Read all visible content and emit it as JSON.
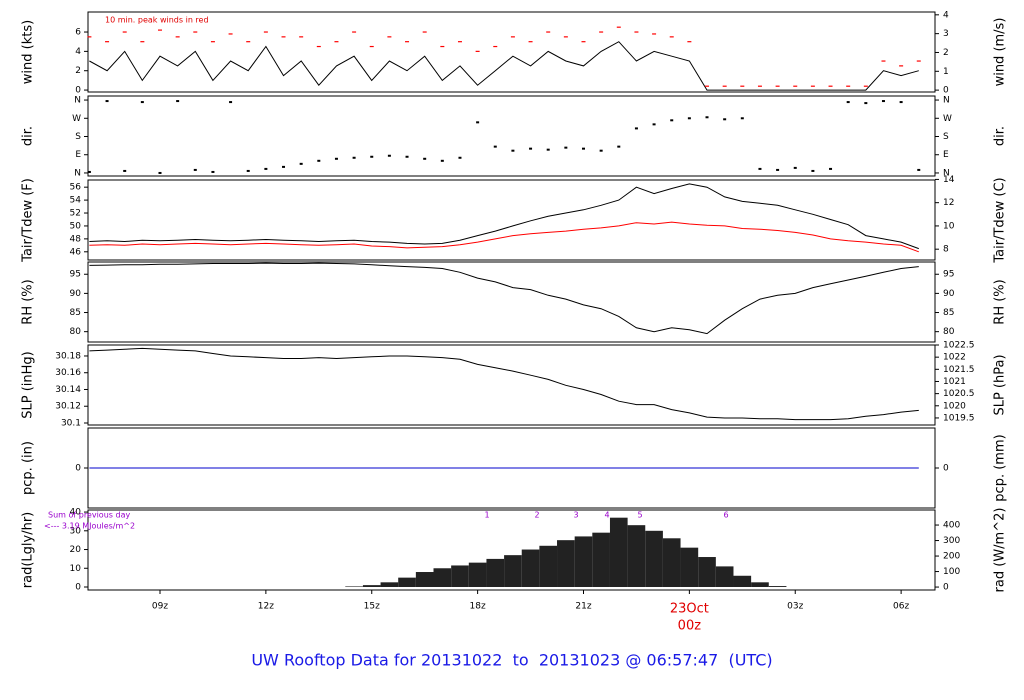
{
  "chart_data": [
    {
      "type": "line",
      "ylabel": "wind (kts)",
      "y2label": "wind (m/s)",
      "note": "10 min. peak winds in red",
      "ylim": [
        -0.2,
        8.07
      ],
      "yticks": [
        0,
        2,
        4,
        6
      ],
      "y2lim": [
        -0.1,
        4.15
      ],
      "y2ticks": [
        0,
        1,
        2,
        3,
        4
      ],
      "series": [
        {
          "style": "line",
          "color": "#000000",
          "values": [
            3,
            2,
            4,
            1,
            3.5,
            2.5,
            4,
            1,
            3,
            2,
            4.5,
            1.5,
            3,
            0.5,
            2.5,
            3.5,
            1,
            3,
            2,
            3.5,
            1,
            2.5,
            0.5,
            2,
            3.5,
            2.5,
            4,
            3,
            2.5,
            4,
            5,
            3,
            4,
            3.5,
            3,
            0,
            0,
            0,
            0,
            0,
            0,
            0,
            0,
            0,
            0,
            2,
            1.5,
            2
          ]
        },
        {
          "style": "dash",
          "color": "#ff0000",
          "values": [
            5.5,
            5,
            6,
            5,
            6.2,
            5.5,
            6,
            5,
            5.8,
            5,
            6,
            5.5,
            5.5,
            4.5,
            5,
            6,
            4.5,
            5.5,
            5,
            6,
            4.5,
            5,
            4,
            4.5,
            5.5,
            5,
            6,
            5.5,
            5,
            6,
            6.5,
            6,
            5.8,
            5.5,
            5,
            0.4,
            0.4,
            0.4,
            0.4,
            0.4,
            0.4,
            0.4,
            0.4,
            0.4,
            0.4,
            3,
            2.5,
            3
          ]
        }
      ]
    },
    {
      "type": "scatter",
      "ylabel": "dir.",
      "y2label": "dir.",
      "ylim": [
        -15,
        380
      ],
      "yticks": [
        {
          "value": 0,
          "label": "N"
        },
        {
          "value": 90,
          "label": "E"
        },
        {
          "value": 180,
          "label": "S"
        },
        {
          "value": 270,
          "label": "W"
        },
        {
          "value": 360,
          "label": "N"
        }
      ],
      "y2lim": [
        -15,
        380
      ],
      "y2ticks": [
        {
          "value": 0,
          "label": "N"
        },
        {
          "value": 90,
          "label": "E"
        },
        {
          "value": 180,
          "label": "S"
        },
        {
          "value": 270,
          "label": "W"
        },
        {
          "value": 360,
          "label": "N"
        }
      ],
      "series": [
        {
          "style": "dot",
          "color": "#000000",
          "values": [
            5,
            355,
            10,
            350,
            0,
            355,
            15,
            5,
            350,
            10,
            20,
            30,
            45,
            60,
            70,
            75,
            80,
            85,
            80,
            70,
            60,
            75,
            250,
            130,
            110,
            120,
            115,
            125,
            120,
            110,
            130,
            220,
            240,
            260,
            270,
            275,
            265,
            270,
            20,
            15,
            25,
            10,
            20,
            350,
            345,
            355,
            350,
            15
          ]
        }
      ]
    },
    {
      "type": "line",
      "ylabel": "Tair/Tdew (F)",
      "y2label": "Tair/Tdew (C)",
      "ylim": [
        44.73,
        57.11
      ],
      "yticks": [
        46,
        48,
        50,
        52,
        54,
        56
      ],
      "y2lim": [
        7.07,
        13.95
      ],
      "y2ticks": [
        8,
        10,
        12,
        14
      ],
      "series": [
        {
          "style": "line",
          "color": "#000000",
          "values": [
            47.6,
            47.7,
            47.6,
            47.8,
            47.7,
            47.8,
            47.9,
            47.8,
            47.7,
            47.8,
            47.9,
            47.8,
            47.7,
            47.6,
            47.7,
            47.8,
            47.6,
            47.5,
            47.3,
            47.2,
            47.3,
            47.8,
            48.5,
            49.2,
            50,
            50.8,
            51.5,
            52,
            52.5,
            53.2,
            54,
            56,
            55,
            55.8,
            56.5,
            56,
            54.5,
            53.8,
            53.5,
            53.2,
            52.5,
            51.8,
            51,
            50.2,
            48.5,
            48,
            47.5,
            46.5
          ]
        },
        {
          "style": "line",
          "color": "#ff0000",
          "values": [
            47,
            47.1,
            47,
            47.2,
            47.1,
            47.2,
            47.3,
            47.2,
            47.1,
            47.2,
            47.3,
            47.2,
            47.1,
            47,
            47.1,
            47.2,
            46.9,
            46.8,
            46.6,
            46.7,
            46.8,
            47.1,
            47.5,
            48,
            48.5,
            48.8,
            49,
            49.2,
            49.5,
            49.7,
            50,
            50.5,
            50.3,
            50.6,
            50.3,
            50.1,
            50,
            49.6,
            49.5,
            49.3,
            49,
            48.6,
            48,
            47.7,
            47.5,
            47.2,
            47,
            46
          ]
        }
      ]
    },
    {
      "type": "line",
      "ylabel": "RH (%)",
      "y2label": "RH (%)",
      "ylim": [
        77.3,
        98.2
      ],
      "yticks": [
        80,
        85,
        90,
        95
      ],
      "y2lim": [
        77.3,
        98.2
      ],
      "y2ticks": [
        80,
        85,
        90,
        95
      ],
      "series": [
        {
          "style": "line",
          "color": "#000000",
          "values": [
            97.3,
            97.4,
            97.5,
            97.5,
            97.6,
            97.6,
            97.7,
            97.8,
            97.8,
            97.8,
            97.9,
            97.8,
            97.8,
            97.9,
            97.8,
            97.7,
            97.5,
            97.2,
            97,
            96.8,
            96.5,
            95.5,
            94,
            93,
            91.5,
            91,
            89.5,
            88.5,
            87,
            86,
            84,
            81,
            80,
            81,
            80.5,
            79.5,
            83,
            86,
            88.5,
            89.5,
            90,
            91.5,
            92.5,
            93.5,
            94.5,
            95.5,
            96.5,
            97
          ]
        }
      ]
    },
    {
      "type": "line",
      "ylabel": "SLP (inHg)",
      "y2label": "SLP (hPa)",
      "ylim": [
        30.0976,
        30.1931
      ],
      "yticks": [
        30.1,
        {
          "value": 30.12,
          "label": "30.12"
        },
        {
          "value": 30.14,
          "label": "30.14"
        },
        {
          "value": 30.16,
          "label": "30.16"
        },
        {
          "value": 30.18,
          "label": "30.18"
        }
      ],
      "y2lim": [
        1019.21,
        1022.5
      ],
      "y2ticks": [
        1019.5,
        1020,
        1020.5,
        1021,
        1021.5,
        1022,
        1022.5
      ],
      "series": [
        {
          "style": "line",
          "color": "#000000",
          "values": [
            30.186,
            30.187,
            30.188,
            30.189,
            30.188,
            30.187,
            30.186,
            30.183,
            30.18,
            30.179,
            30.178,
            30.177,
            30.177,
            30.178,
            30.177,
            30.178,
            30.179,
            30.18,
            30.18,
            30.179,
            30.178,
            30.176,
            30.17,
            30.166,
            30.162,
            30.157,
            30.152,
            30.145,
            30.14,
            30.134,
            30.126,
            30.122,
            30.122,
            30.116,
            30.112,
            30.107,
            30.106,
            30.106,
            30.105,
            30.105,
            30.104,
            30.104,
            30.104,
            30.105,
            30.108,
            30.11,
            30.113,
            30.115
          ]
        }
      ]
    },
    {
      "type": "line",
      "ylabel": "pcp. (in)",
      "y2label": "pcp. (mm)",
      "ylim": [
        -1,
        1
      ],
      "yticks": [
        0
      ],
      "y2lim": [
        -25.4,
        25.4
      ],
      "y2ticks": [
        0
      ],
      "series": [
        {
          "style": "line",
          "color": "#0000cc",
          "values": [
            0,
            0,
            0,
            0,
            0,
            0,
            0,
            0,
            0,
            0,
            0,
            0,
            0,
            0,
            0,
            0,
            0,
            0,
            0,
            0,
            0,
            0,
            0,
            0,
            0,
            0,
            0,
            0,
            0,
            0,
            0,
            0,
            0,
            0,
            0,
            0,
            0,
            0,
            0,
            0,
            0,
            0,
            0,
            0,
            0,
            0,
            0,
            0
          ]
        }
      ]
    },
    {
      "type": "bar",
      "ylabel": "rad(Lgly/hr)",
      "y2label": "rad (W/m^2)",
      "notes": [
        "Sum of previous day",
        "<--- 3.19 MJoules/m^2"
      ],
      "markers": [
        "1",
        "2",
        "3",
        "4",
        "5",
        "6"
      ],
      "ylim": [
        -1.6,
        41.1
      ],
      "yticks": [
        0,
        10,
        20,
        30,
        40
      ],
      "y2lim": [
        -19,
        497
      ],
      "y2ticks": [
        0,
        100,
        200,
        300,
        400
      ],
      "series": [
        {
          "style": "bar",
          "color": "#222222",
          "values": [
            0,
            0,
            0,
            0,
            0,
            0,
            0,
            0,
            0,
            0,
            0,
            0,
            0,
            0,
            0,
            0.3,
            1,
            2.5,
            5,
            8,
            10,
            11.5,
            13,
            15,
            17,
            20,
            22,
            25,
            27,
            29,
            37,
            33,
            30,
            26,
            21,
            16,
            11,
            6,
            2.5,
            0.5,
            0,
            0,
            0,
            0,
            0,
            0,
            0,
            0
          ]
        }
      ]
    }
  ],
  "x_axis": {
    "xlim": [
      6.96,
      30.96
    ],
    "x": [
      7,
      7.5,
      8,
      8.5,
      9,
      9.5,
      10,
      10.5,
      11,
      11.5,
      12,
      12.5,
      13,
      13.5,
      14,
      14.5,
      15,
      15.5,
      16,
      16.5,
      17,
      17.5,
      18,
      18.5,
      19,
      19.5,
      20,
      20.5,
      21,
      21.5,
      22,
      22.5,
      23,
      23.5,
      24,
      24.5,
      25,
      25.5,
      26,
      26.5,
      27,
      27.5,
      28,
      28.5,
      29,
      29.5,
      30,
      30.5
    ],
    "xticks": [
      {
        "value": 9,
        "label": "09z"
      },
      {
        "value": 12,
        "label": "12z"
      },
      {
        "value": 15,
        "label": "15z"
      },
      {
        "value": 18,
        "label": "18z"
      },
      {
        "value": 21,
        "label": "21z"
      },
      {
        "value": 27,
        "label": "03z"
      },
      {
        "value": 30,
        "label": "06z"
      }
    ],
    "date_tick": {
      "value": 24,
      "label": "00z",
      "date": "23Oct",
      "color": "#e00000"
    }
  },
  "footer": "UW Rooftop Data for 20131022  to  20131023 @ 06:57:47  (UTC)"
}
